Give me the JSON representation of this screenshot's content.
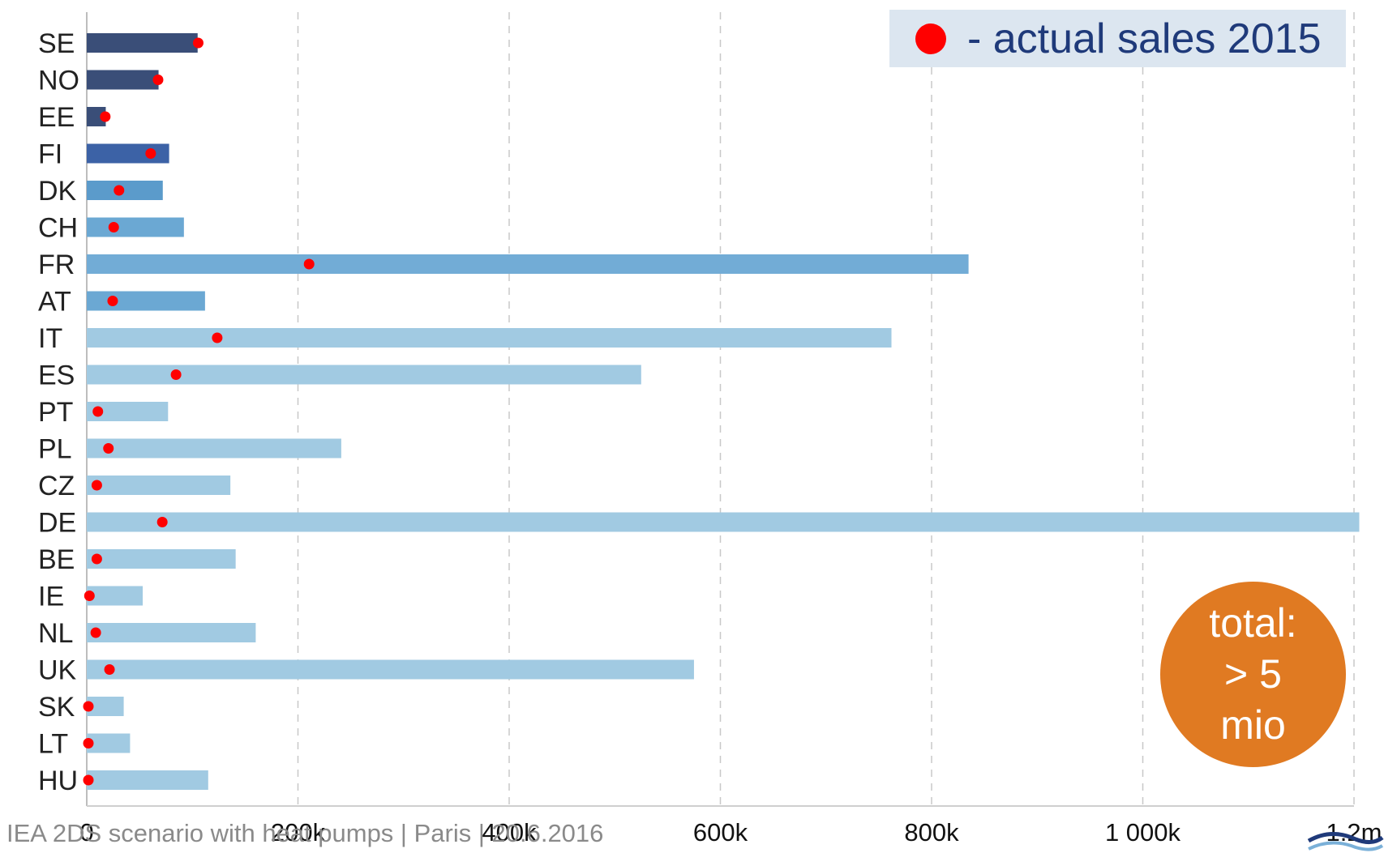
{
  "chart_data": {
    "type": "bar",
    "orientation": "horizontal",
    "categories": [
      "SE",
      "NO",
      "EE",
      "FI",
      "DK",
      "CH",
      "FR",
      "AT",
      "IT",
      "ES",
      "PT",
      "PL",
      "CZ",
      "DE",
      "BE",
      "IE",
      "NL",
      "UK",
      "SK",
      "LT",
      "HU"
    ],
    "series": [
      {
        "values": [
          105000,
          68000,
          18000,
          78000,
          72000,
          92000,
          835000,
          112000,
          762000,
          525000,
          77000,
          241000,
          136000,
          1205000,
          141000,
          53000,
          160000,
          575000,
          35000,
          41000,
          115000
        ],
        "colors": [
          "#3a4e78",
          "#3a4e78",
          "#3a4e78",
          "#3c62a6",
          "#5b9bcb",
          "#6ba8d3",
          "#72acd6",
          "#6ba8d3",
          "#a1cae2",
          "#a1cae2",
          "#a1cae2",
          "#a1cae2",
          "#a1cae2",
          "#a1cae2",
          "#a1cae2",
          "#a1cae2",
          "#a1cae2",
          "#a1cae2",
          "#a1cae2",
          "#a1cae2",
          "#a1cae2"
        ]
      },
      {
        "name": "- actual sales 2015",
        "marker": "red-dot",
        "color": "#ff0000",
        "values": [
          104000,
          66000,
          16000,
          59000,
          29000,
          24000,
          209000,
          23000,
          122000,
          83000,
          9000,
          19000,
          8000,
          70000,
          8000,
          1000,
          7000,
          20000,
          0,
          0,
          0
        ]
      }
    ],
    "xlim": [
      0,
      1200000
    ],
    "xticks": [
      {
        "value": 0,
        "label": "0"
      },
      {
        "value": 200000,
        "label": "200k"
      },
      {
        "value": 400000,
        "label": "400k"
      },
      {
        "value": 600000,
        "label": "600k"
      },
      {
        "value": 800000,
        "label": "800k"
      },
      {
        "value": 1000000,
        "label": "1 000k"
      },
      {
        "value": 1200000,
        "label": "1.2m"
      }
    ],
    "grid": "vertical-dashed",
    "legend_position": "top-right"
  },
  "legend": {
    "label": "- actual sales 2015",
    "marker_color": "#ff0000"
  },
  "total_badge": {
    "lines": [
      "total:",
      "> 5",
      "mio"
    ],
    "color": "#e07a22"
  },
  "footer": "IEA 2DS scenario with heat pumps | Paris | 20.6.2016"
}
